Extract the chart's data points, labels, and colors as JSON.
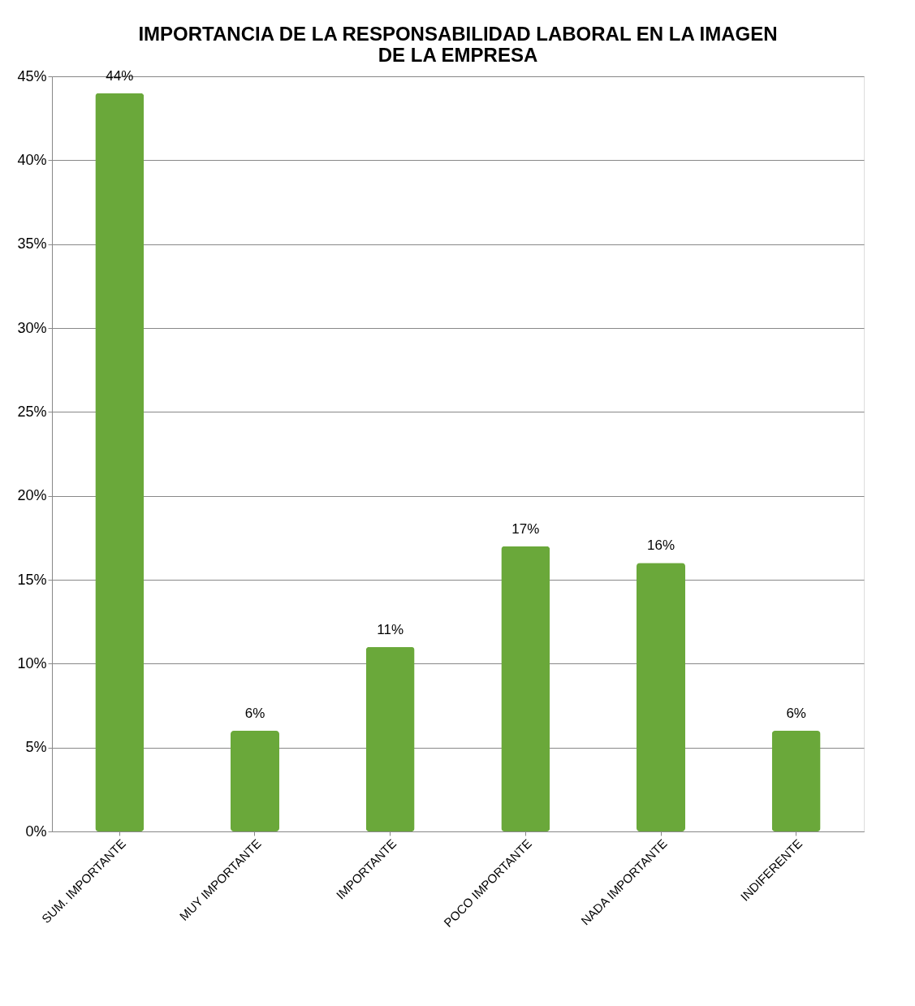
{
  "chart_data": {
    "type": "bar",
    "title": [
      "IMPORTANCIA DE LA RESPONSABILIDAD LABORAL EN LA IMAGEN",
      "DE LA EMPRESA"
    ],
    "categories": [
      "SUM. IMPORTANTE",
      "MUY IMPORTANTE",
      "IMPORTANTE",
      "POCO IMPORTANTE",
      "NADA IMPORTANTE",
      "INDIFERENTE"
    ],
    "values": [
      44,
      6,
      11,
      17,
      16,
      6
    ],
    "value_labels": [
      "44%",
      "6%",
      "11%",
      "17%",
      "16%",
      "6%"
    ],
    "color": "#6aa83a",
    "ylim": [
      0,
      45
    ],
    "yticks": [
      {
        "value": 0,
        "label": "0%"
      },
      {
        "value": 5,
        "label": "5%"
      },
      {
        "value": 10,
        "label": "10%"
      },
      {
        "value": 15,
        "label": "15%"
      },
      {
        "value": 20,
        "label": "20%"
      },
      {
        "value": 25,
        "label": "25%"
      },
      {
        "value": 30,
        "label": "30%"
      },
      {
        "value": 35,
        "label": "35%"
      },
      {
        "value": 40,
        "label": "40%"
      },
      {
        "value": 45,
        "label": "45%"
      }
    ],
    "grid": "y"
  }
}
